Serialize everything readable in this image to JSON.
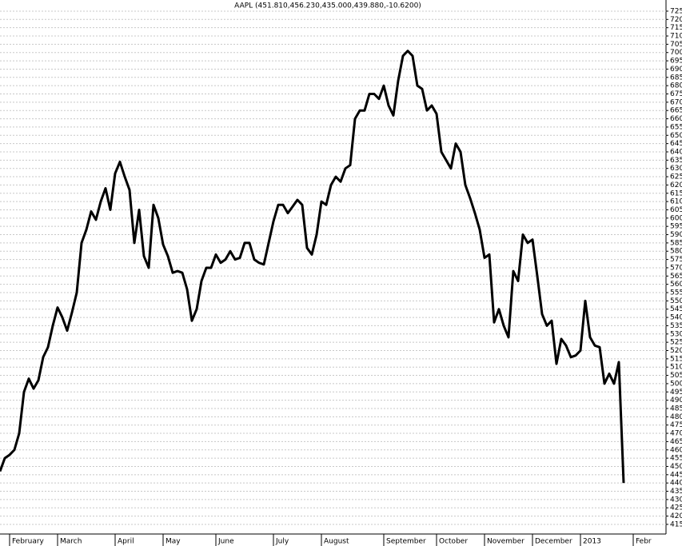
{
  "chart_data": {
    "type": "line",
    "title": "AAPL (451.810,456.230,435.000,439.880,-10.6200)",
    "categories": [
      null,
      null,
      "February",
      null,
      null,
      null,
      null,
      null,
      null,
      null,
      null,
      null,
      "March",
      null,
      null,
      null,
      null,
      null,
      null,
      null,
      null,
      null,
      null,
      null,
      "April",
      null,
      null,
      null,
      null,
      null,
      null,
      null,
      null,
      null,
      "May",
      null,
      null,
      null,
      null,
      null,
      null,
      null,
      null,
      null,
      null,
      "June",
      null,
      null,
      null,
      null,
      null,
      null,
      null,
      null,
      null,
      null,
      null,
      "July",
      null,
      null,
      null,
      null,
      null,
      null,
      null,
      null,
      null,
      "August",
      null,
      null,
      null,
      null,
      null,
      null,
      null,
      null,
      null,
      null,
      null,
      null,
      "September",
      null,
      null,
      null,
      null,
      null,
      null,
      null,
      null,
      null,
      null,
      "October",
      null,
      null,
      null,
      null,
      null,
      null,
      null,
      null,
      null,
      "November",
      null,
      null,
      null,
      null,
      null,
      null,
      null,
      null,
      null,
      "December",
      null,
      null,
      null,
      null,
      null,
      null,
      null,
      null,
      null,
      "2013",
      null,
      null,
      null,
      null,
      null,
      null,
      null,
      null,
      null,
      null,
      "Febr",
      null,
      null,
      null,
      null,
      null,
      null
    ],
    "series": [
      {
        "name": "AAPL",
        "color": "#000000",
        "values": [
          447,
          455,
          457,
          460,
          470,
          495,
          503,
          497,
          502,
          516,
          522,
          535,
          546,
          540,
          532,
          543,
          555,
          585,
          593,
          604,
          599,
          610,
          618,
          605,
          627,
          634,
          625,
          617,
          585,
          605,
          577,
          570,
          608,
          600,
          584,
          577,
          567,
          568,
          567,
          557,
          538,
          545,
          562,
          570,
          570,
          578,
          573,
          575,
          580,
          575,
          576,
          585,
          585,
          575,
          573,
          572,
          585,
          598,
          608,
          608,
          603,
          607,
          611,
          608,
          582,
          578,
          590,
          610,
          608,
          620,
          625,
          622,
          630,
          632,
          660,
          665,
          665,
          675,
          675,
          672,
          680,
          668,
          662,
          683,
          698,
          701,
          698,
          680,
          678,
          665,
          668,
          663,
          640,
          635,
          630,
          645,
          640,
          620,
          612,
          603,
          593,
          576,
          578,
          537,
          545,
          535,
          528,
          568,
          562,
          590,
          585,
          587,
          565,
          542,
          535,
          538,
          512,
          527,
          523,
          516,
          517,
          520,
          550,
          528,
          523,
          522,
          500,
          506,
          500,
          513,
          440,
          null,
          null,
          null,
          null,
          null,
          null,
          null,
          null
        ]
      }
    ],
    "ylim": [
      410,
      730
    ],
    "yticks": [
      415,
      420,
      425,
      430,
      435,
      440,
      445,
      450,
      455,
      460,
      465,
      470,
      475,
      480,
      485,
      490,
      495,
      500,
      505,
      510,
      515,
      520,
      525,
      530,
      535,
      540,
      545,
      550,
      555,
      560,
      565,
      570,
      575,
      580,
      585,
      590,
      595,
      600,
      605,
      610,
      615,
      620,
      625,
      630,
      635,
      640,
      645,
      650,
      655,
      660,
      665,
      670,
      675,
      680,
      685,
      690,
      695,
      700,
      705,
      710,
      715,
      720,
      725
    ],
    "grid": true
  }
}
